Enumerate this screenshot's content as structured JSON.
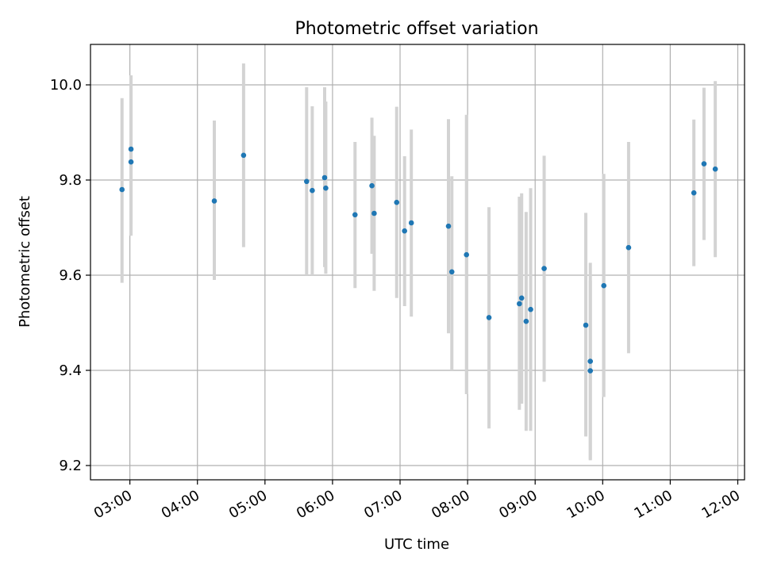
{
  "chart_data": {
    "type": "scatter",
    "title": "Photometric offset variation",
    "xlabel": "UTC time",
    "ylabel": "Photometric offset",
    "x_tick_labels": [
      "03:00",
      "04:00",
      "05:00",
      "06:00",
      "07:00",
      "08:00",
      "09:00",
      "10:00",
      "11:00",
      "12:00"
    ],
    "x_tick_values": [
      "03:00",
      "04:00",
      "05:00",
      "06:00",
      "07:00",
      "08:00",
      "09:00",
      "10:00",
      "11:00",
      "12:00"
    ],
    "y_tick_labels": [
      "9.2",
      "9.4",
      "9.6",
      "9.8",
      "10.0"
    ],
    "y_tick_values": [
      9.2,
      9.4,
      9.6,
      9.8,
      10.0
    ],
    "xlim": [
      "02:25",
      "12:06"
    ],
    "ylim": [
      9.17,
      10.085
    ],
    "grid": true,
    "colors": {
      "point": "#1f77b4",
      "errorbar": "#d3d3d3",
      "grid": "#b0b0b0"
    },
    "points": [
      {
        "x": "02:53",
        "y": 9.78,
        "ylow": 9.584,
        "yhigh": 9.972
      },
      {
        "x": "03:01",
        "y": 9.865,
        "ylow": 9.707,
        "yhigh": 10.02
      },
      {
        "x": "03:01",
        "y": 9.838,
        "ylow": 9.683,
        "yhigh": 9.993
      },
      {
        "x": "04:15",
        "y": 9.756,
        "ylow": 9.59,
        "yhigh": 9.925
      },
      {
        "x": "04:41",
        "y": 9.852,
        "ylow": 9.659,
        "yhigh": 10.045
      },
      {
        "x": "05:37",
        "y": 9.797,
        "ylow": 9.6,
        "yhigh": 9.995
      },
      {
        "x": "05:42",
        "y": 9.778,
        "ylow": 9.6,
        "yhigh": 9.955
      },
      {
        "x": "05:53",
        "y": 9.805,
        "ylow": 9.617,
        "yhigh": 9.995
      },
      {
        "x": "05:54",
        "y": 9.783,
        "ylow": 9.603,
        "yhigh": 9.965
      },
      {
        "x": "06:20",
        "y": 9.727,
        "ylow": 9.573,
        "yhigh": 9.88
      },
      {
        "x": "06:35",
        "y": 9.788,
        "ylow": 9.645,
        "yhigh": 9.931
      },
      {
        "x": "06:37",
        "y": 9.73,
        "ylow": 9.567,
        "yhigh": 9.893
      },
      {
        "x": "06:57",
        "y": 9.753,
        "ylow": 9.552,
        "yhigh": 9.954
      },
      {
        "x": "07:04",
        "y": 9.693,
        "ylow": 9.535,
        "yhigh": 9.85
      },
      {
        "x": "07:10",
        "y": 9.71,
        "ylow": 9.513,
        "yhigh": 9.906
      },
      {
        "x": "07:43",
        "y": 9.703,
        "ylow": 9.478,
        "yhigh": 9.928
      },
      {
        "x": "07:46",
        "y": 9.607,
        "ylow": 9.4,
        "yhigh": 9.808
      },
      {
        "x": "07:59",
        "y": 9.643,
        "ylow": 9.35,
        "yhigh": 9.937
      },
      {
        "x": "08:19",
        "y": 9.511,
        "ylow": 9.278,
        "yhigh": 9.743
      },
      {
        "x": "08:46",
        "y": 9.54,
        "ylow": 9.317,
        "yhigh": 9.765
      },
      {
        "x": "08:48",
        "y": 9.552,
        "ylow": 9.33,
        "yhigh": 9.772
      },
      {
        "x": "08:52",
        "y": 9.503,
        "ylow": 9.273,
        "yhigh": 9.733
      },
      {
        "x": "08:56",
        "y": 9.528,
        "ylow": 9.273,
        "yhigh": 9.783
      },
      {
        "x": "09:08",
        "y": 9.614,
        "ylow": 9.376,
        "yhigh": 9.851
      },
      {
        "x": "09:45",
        "y": 9.495,
        "ylow": 9.261,
        "yhigh": 9.731
      },
      {
        "x": "09:49",
        "y": 9.419,
        "ylow": 9.213,
        "yhigh": 9.626
      },
      {
        "x": "09:49",
        "y": 9.399,
        "ylow": 9.211,
        "yhigh": 9.589
      },
      {
        "x": "10:01",
        "y": 9.578,
        "ylow": 9.344,
        "yhigh": 9.813
      },
      {
        "x": "10:23",
        "y": 9.658,
        "ylow": 9.436,
        "yhigh": 9.88
      },
      {
        "x": "11:21",
        "y": 9.773,
        "ylow": 9.619,
        "yhigh": 9.927
      },
      {
        "x": "11:30",
        "y": 9.834,
        "ylow": 9.674,
        "yhigh": 9.994
      },
      {
        "x": "11:40",
        "y": 9.823,
        "ylow": 9.638,
        "yhigh": 10.008
      }
    ]
  }
}
